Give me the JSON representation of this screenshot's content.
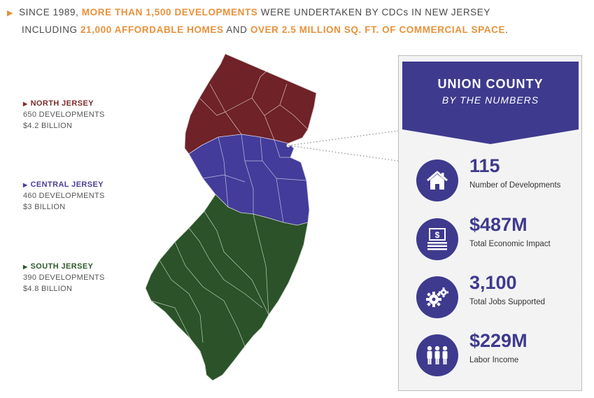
{
  "headline": {
    "line1": [
      {
        "text": "SINCE 1989, ",
        "hi": false
      },
      {
        "text": "MORE THAN 1,500 DEVELOPMENTS",
        "hi": true
      },
      {
        "text": " WERE UNDERTAKEN BY CDCs IN NEW JERSEY",
        "hi": false
      }
    ],
    "line2": [
      {
        "text": "INCLUDING ",
        "hi": false
      },
      {
        "text": "21,000 AFFORDABLE HOMES",
        "hi": true
      },
      {
        "text": " AND ",
        "hi": false
      },
      {
        "text": "OVER 2.5 MILLION SQ. FT. OF COMMERCIAL SPACE",
        "hi": true
      },
      {
        "text": ".",
        "hi": false
      }
    ]
  },
  "regions": {
    "north": {
      "title": "NORTH JERSEY",
      "developments": "650 DEVELOPMENTS",
      "amount": "$4.2 BILLION",
      "color": "#6f2227"
    },
    "central": {
      "title": "CENTRAL JERSEY",
      "developments": "460 DEVELOPMENTS",
      "amount": "$3 BILLION",
      "color": "#433c9a"
    },
    "south": {
      "title": "SOUTH JERSEY",
      "developments": "390 DEVELOPMENTS",
      "amount": "$4.8 BILLION",
      "color": "#2b5228"
    }
  },
  "panel": {
    "title": "UNION COUNTY",
    "subtitle": "BY THE NUMBERS",
    "accent": "#3e3a8e",
    "stats": [
      {
        "value": "115",
        "label": "Number of Developments",
        "icon": "house-icon"
      },
      {
        "value": "$487M",
        "label": "Total Economic Impact",
        "icon": "money-stack-icon"
      },
      {
        "value": "3,100",
        "label": "Total Jobs Supported",
        "icon": "gears-icon"
      },
      {
        "value": "$229M",
        "label": "Labor Income",
        "icon": "people-icon"
      }
    ]
  }
}
